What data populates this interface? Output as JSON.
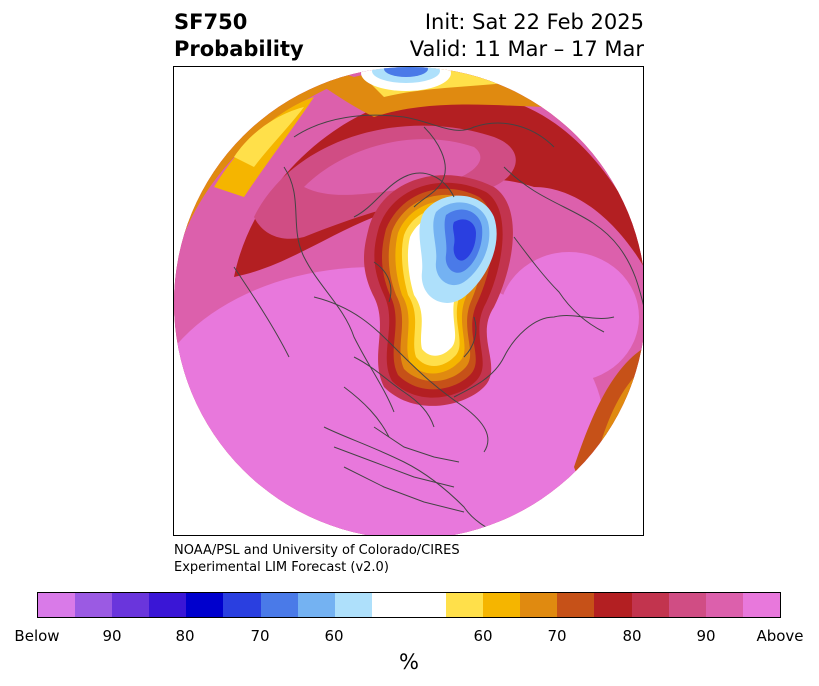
{
  "header": {
    "title_line1": "SF750",
    "title_line2": "Probability",
    "init": "Init: Sat 22 Feb 2025",
    "valid": "Valid: 11 Mar – 17 Mar"
  },
  "credits": {
    "line1": "NOAA/PSL and University of Colorado/CIRES",
    "line2": "Experimental LIM Forecast (v2.0)"
  },
  "colorbar": {
    "unit": "%",
    "colors": [
      "#d97ae8",
      "#9b5ae3",
      "#6a35dc",
      "#3a16d6",
      "#0000cd",
      "#2a3fe0",
      "#4a7ae8",
      "#74b2f2",
      "#aee0fb",
      "#ffffff",
      "#ffe04a",
      "#f5b500",
      "#e08a10",
      "#c65118",
      "#b31f22",
      "#c2344e",
      "#d04d84",
      "#dc60ac",
      "#e878dc"
    ],
    "labels": [
      "Below",
      "90",
      "80",
      "70",
      "60",
      "60",
      "70",
      "80",
      "90",
      "Above"
    ]
  },
  "map": {
    "projection": "north polar stereographic",
    "colors": {
      "above": "#e878dc",
      "p90": "#dc60ac",
      "p80": "#d04d84",
      "p75": "#c2344e",
      "p70": "#b31f22",
      "p65": "#c65118",
      "p60": "#e08a10",
      "p55": "#f5b500",
      "p50": "#ffe04a",
      "neutral": "#ffffff",
      "b60": "#aee0fb",
      "b65": "#74b2f2",
      "b70": "#4a7ae8",
      "b75": "#2a3fe0"
    }
  }
}
